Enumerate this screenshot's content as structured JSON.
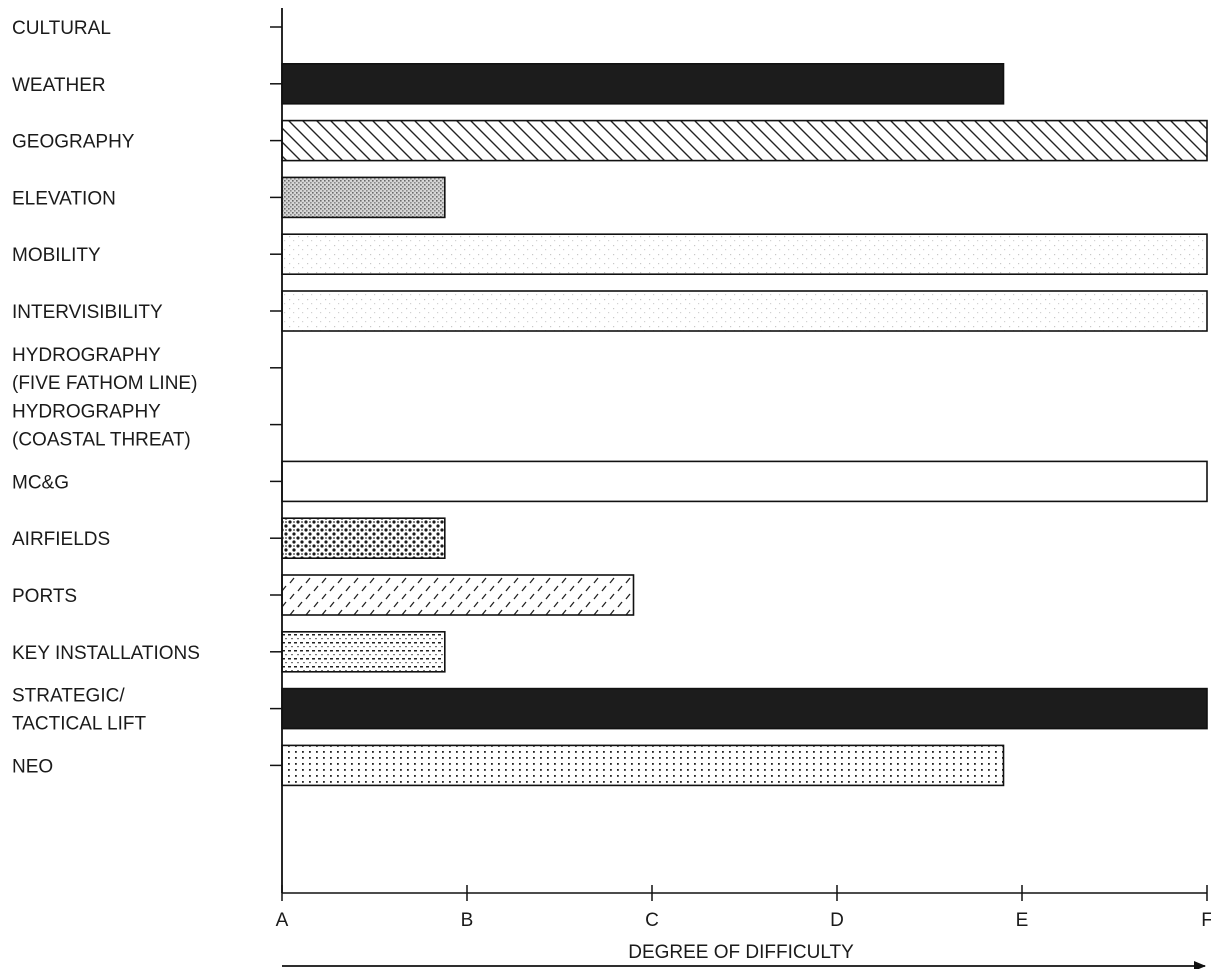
{
  "chart_data": {
    "type": "bar",
    "orientation": "horizontal",
    "title": "",
    "xlabel": "DEGREE OF DIFFICULTY",
    "ylabel": "",
    "x_ticks": [
      "A",
      "B",
      "C",
      "D",
      "E",
      "F"
    ],
    "xlim": [
      0,
      5
    ],
    "grid": false,
    "legend": "none",
    "categories": [
      {
        "lines": [
          "CULTURAL"
        ]
      },
      {
        "lines": [
          "WEATHER"
        ]
      },
      {
        "lines": [
          "GEOGRAPHY"
        ]
      },
      {
        "lines": [
          "ELEVATION"
        ]
      },
      {
        "lines": [
          "MOBILITY"
        ]
      },
      {
        "lines": [
          "INTERVISIBILITY"
        ]
      },
      {
        "lines": [
          "HYDROGRAPHY",
          "(FIVE FATHOM LINE)"
        ]
      },
      {
        "lines": [
          "HYDROGRAPHY",
          "(COASTAL THREAT)"
        ]
      },
      {
        "lines": [
          "MC&G"
        ]
      },
      {
        "lines": [
          "AIRFIELDS"
        ]
      },
      {
        "lines": [
          "PORTS"
        ]
      },
      {
        "lines": [
          "KEY INSTALLATIONS"
        ]
      },
      {
        "lines": [
          "STRATEGIC/",
          "TACTICAL LIFT"
        ]
      },
      {
        "lines": [
          "NEO"
        ]
      }
    ],
    "values": [
      null,
      3.9,
      5.0,
      0.88,
      5.0,
      5.0,
      null,
      null,
      5.0,
      0.88,
      1.9,
      0.88,
      5.0,
      3.9
    ],
    "patterns": [
      "none",
      "dark",
      "diagonal",
      "gray-dots",
      "light-speckle",
      "light-speckle",
      "none",
      "none",
      "white",
      "heavy-dots",
      "dashes",
      "dotted-lines",
      "dark",
      "dot-grid"
    ]
  }
}
